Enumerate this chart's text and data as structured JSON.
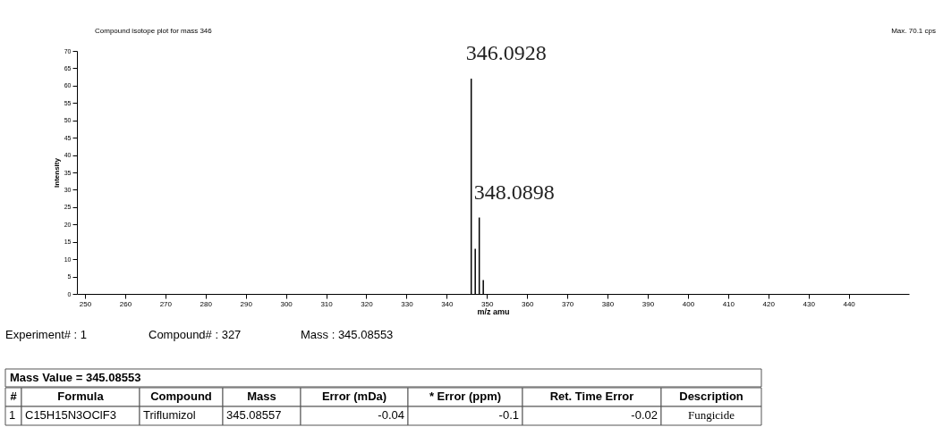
{
  "chart_data": {
    "type": "bar",
    "title": "Compound isotope plot for mass 346",
    "xlabel": "m/z amu",
    "ylabel": "Intensity",
    "x": [
      346.0928,
      347.09,
      348.0898,
      349.09
    ],
    "values": [
      62,
      13,
      22,
      4
    ],
    "color": "#000000",
    "xlim": [
      248,
      455
    ],
    "xticks": [
      250,
      260,
      270,
      280,
      290,
      300,
      310,
      320,
      330,
      340,
      350,
      360,
      370,
      380,
      390,
      400,
      410,
      420,
      430,
      440
    ],
    "ylim": [
      0,
      70
    ],
    "yticks": [
      0,
      5,
      10,
      15,
      20,
      25,
      30,
      35,
      40,
      45,
      50,
      55,
      60,
      65,
      70
    ],
    "grid": false,
    "annotations": [
      {
        "text": "346.0928",
        "x": 346.0928,
        "y": 62
      },
      {
        "text": "348.0898",
        "x": 348.0898,
        "y": 22
      },
      "Max. 70.1 cps",
      "Experiment# : 1",
      "Compound# : 327",
      "Mass : 345.08553",
      "Mass Value = 345.08553",
      "#",
      "Formula",
      "Compound",
      "Mass",
      "Error (mDa)",
      "* Error (ppm)",
      "Ret. Time Error",
      "Description",
      "1",
      "C15H15N3OClF3",
      "Triflumizol",
      "345.08557",
      "-0.04",
      "-0.1",
      "-0.02",
      "Fungicide"
    ]
  }
}
